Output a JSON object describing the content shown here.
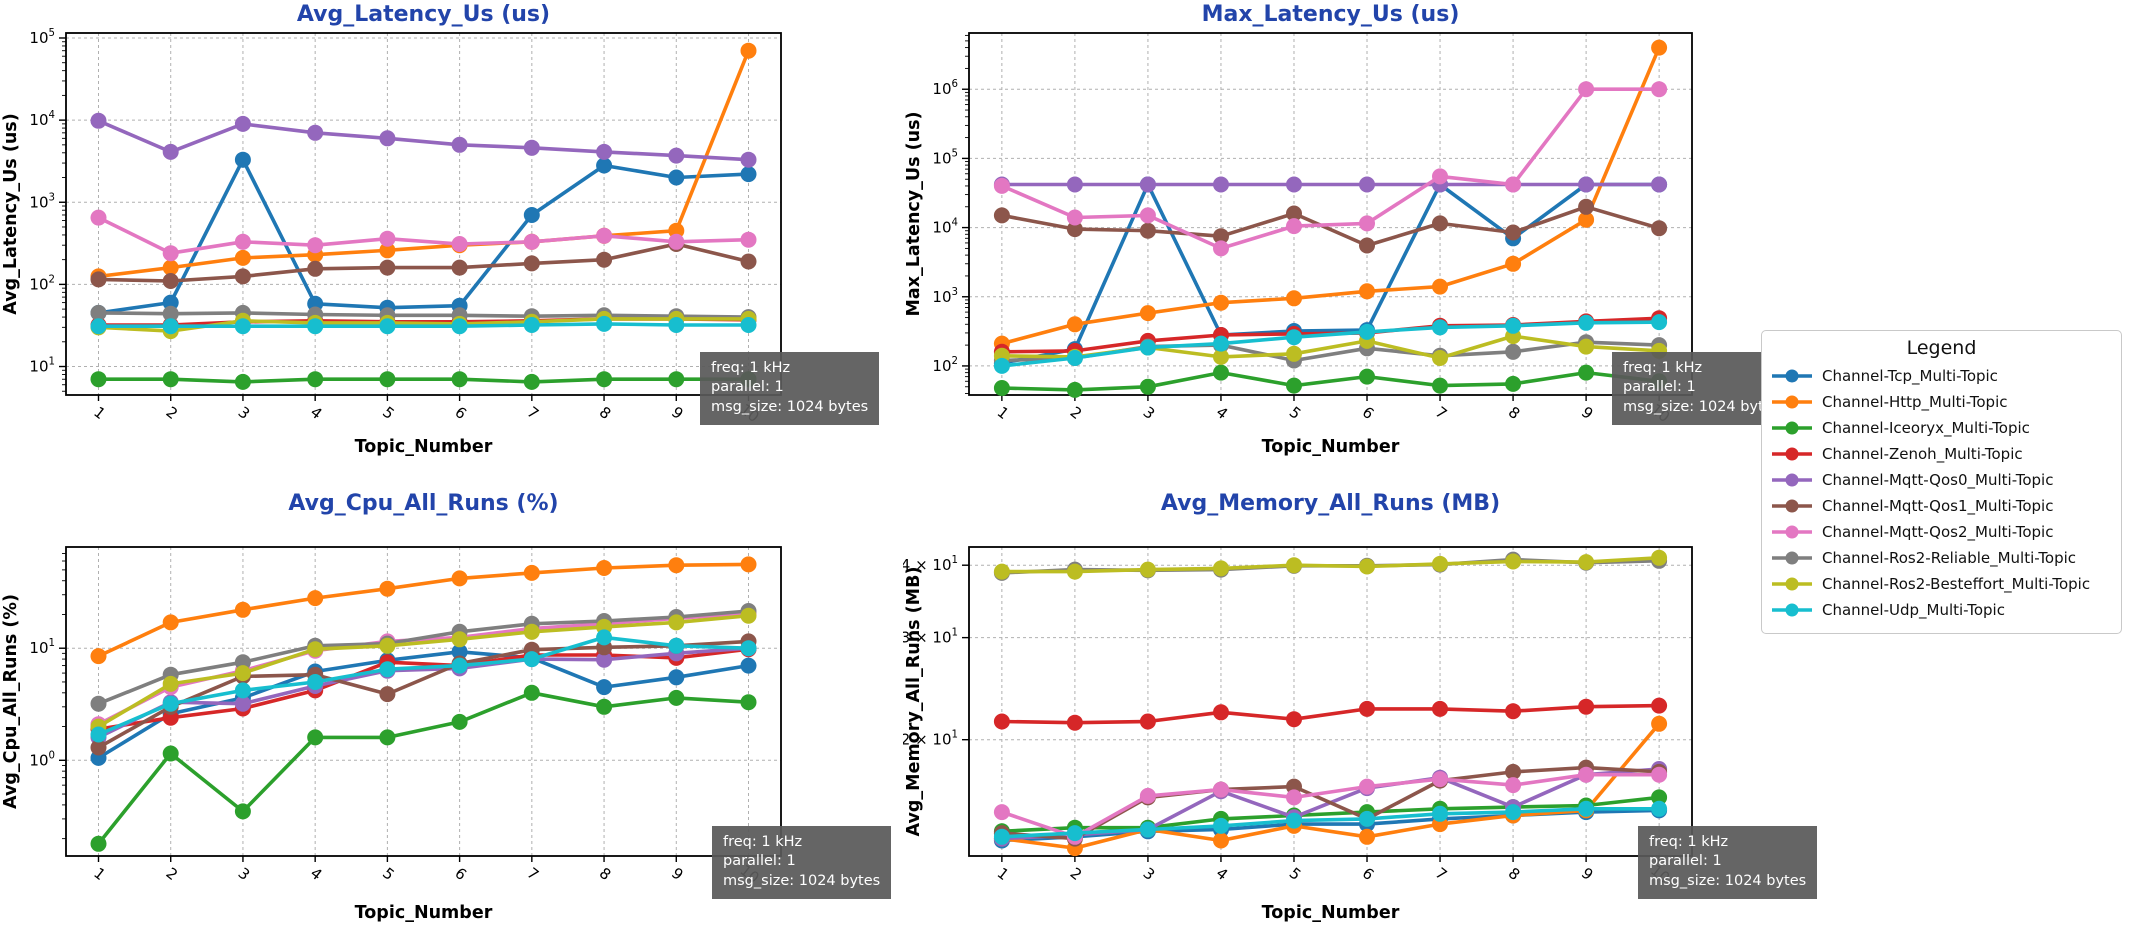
{
  "page": {
    "background": "#ffffff"
  },
  "style": {
    "title_color": "#2244aa",
    "axis_color": "#000000",
    "grid_color": "#b0b0b0",
    "tick_label_color": "#000000"
  },
  "annotation": {
    "lines": [
      "freq: 1 kHz",
      "parallel: 1",
      "msg_size: 1024 bytes"
    ],
    "bg": "#595959",
    "fg": "#ffffff"
  },
  "legend": {
    "title": "Legend",
    "entries": [
      {
        "label": "Channel-Tcp_Multi-Topic",
        "color": "#1f77b4"
      },
      {
        "label": "Channel-Http_Multi-Topic",
        "color": "#ff7f0e"
      },
      {
        "label": "Channel-Iceoryx_Multi-Topic",
        "color": "#2ca02c"
      },
      {
        "label": "Channel-Zenoh_Multi-Topic",
        "color": "#d62728"
      },
      {
        "label": "Channel-Mqtt-Qos0_Multi-Topic",
        "color": "#9467bd"
      },
      {
        "label": "Channel-Mqtt-Qos1_Multi-Topic",
        "color": "#8c564b"
      },
      {
        "label": "Channel-Mqtt-Qos2_Multi-Topic",
        "color": "#e377c2"
      },
      {
        "label": "Channel-Ros2-Reliable_Multi-Topic",
        "color": "#7f7f7f"
      },
      {
        "label": "Channel-Ros2-Besteffort_Multi-Topic",
        "color": "#bcbd22"
      },
      {
        "label": "Channel-Udp_Multi-Topic",
        "color": "#17becf"
      }
    ]
  },
  "chart_data": [
    {
      "type": "line",
      "title": "Avg_Latency_Us  (us)",
      "ylabel": "Avg_Latency_Us (us)",
      "xlabel": "Topic_Number",
      "yscale": "log",
      "grid": true,
      "x": [
        1,
        2,
        3,
        4,
        5,
        6,
        7,
        8,
        9,
        10
      ],
      "ylim": [
        4.5,
        115000
      ],
      "yticks": [
        {
          "value": 10,
          "label": "10^1"
        },
        {
          "value": 100,
          "label": "10^2"
        },
        {
          "value": 1000,
          "label": "10^3"
        },
        {
          "value": 10000,
          "label": "10^4"
        },
        {
          "value": 100000,
          "label": "10^5"
        }
      ],
      "series": [
        {
          "name": "Channel-Tcp_Multi-Topic",
          "values": [
            45,
            60,
            3300,
            58,
            52,
            55,
            700,
            2800,
            2000,
            2200
          ]
        },
        {
          "name": "Channel-Http_Multi-Topic",
          "values": [
            125,
            160,
            210,
            230,
            260,
            300,
            330,
            390,
            450,
            70000
          ]
        },
        {
          "name": "Channel-Iceoryx_Multi-Topic",
          "values": [
            7,
            7,
            6.5,
            7,
            7,
            7,
            6.5,
            7,
            7,
            7
          ]
        },
        {
          "name": "Channel-Zenoh_Multi-Topic",
          "values": [
            32,
            32,
            35,
            36,
            35,
            35,
            36,
            38,
            38,
            37
          ]
        },
        {
          "name": "Channel-Mqtt-Qos0_Multi-Topic",
          "values": [
            9800,
            4100,
            9000,
            7000,
            6000,
            5000,
            4600,
            4100,
            3700,
            3300
          ]
        },
        {
          "name": "Channel-Mqtt-Qos1_Multi-Topic",
          "values": [
            115,
            110,
            125,
            155,
            160,
            160,
            180,
            200,
            310,
            190
          ]
        },
        {
          "name": "Channel-Mqtt-Qos2_Multi-Topic",
          "values": [
            650,
            240,
            330,
            300,
            360,
            310,
            330,
            390,
            330,
            350
          ]
        },
        {
          "name": "Channel-Ros2-Reliable_Multi-Topic",
          "values": [
            45,
            44,
            45,
            43,
            42,
            42,
            41,
            42,
            41,
            40
          ]
        },
        {
          "name": "Channel-Ros2-Besteffort_Multi-Topic",
          "values": [
            30,
            27,
            36,
            34,
            34,
            33,
            35,
            38,
            38,
            38
          ]
        },
        {
          "name": "Channel-Udp_Multi-Topic",
          "values": [
            31,
            31,
            31,
            31,
            31,
            31,
            32,
            33,
            32,
            32
          ]
        }
      ]
    },
    {
      "type": "line",
      "title": "Max_Latency_Us  (us)",
      "ylabel": "Max_Latency_Us (us)",
      "xlabel": "Topic_Number",
      "yscale": "log",
      "grid": true,
      "x": [
        1,
        2,
        3,
        4,
        5,
        6,
        7,
        8,
        9,
        10
      ],
      "ylim": [
        38,
        6500000
      ],
      "yticks": [
        {
          "value": 100,
          "label": "10^2"
        },
        {
          "value": 1000,
          "label": "10^3"
        },
        {
          "value": 10000,
          "label": "10^4"
        },
        {
          "value": 100000,
          "label": "10^5"
        },
        {
          "value": 1000000,
          "label": "10^6"
        }
      ],
      "series": [
        {
          "name": "Channel-Tcp_Multi-Topic",
          "values": [
            110,
            175,
            42000,
            280,
            320,
            330,
            42000,
            7000,
            42000,
            42000
          ]
        },
        {
          "name": "Channel-Http_Multi-Topic",
          "values": [
            210,
            400,
            580,
            820,
            950,
            1200,
            1400,
            3000,
            13000,
            4000000
          ]
        },
        {
          "name": "Channel-Iceoryx_Multi-Topic",
          "values": [
            48,
            45,
            50,
            80,
            52,
            70,
            52,
            55,
            80,
            60
          ]
        },
        {
          "name": "Channel-Zenoh_Multi-Topic",
          "values": [
            160,
            165,
            230,
            280,
            290,
            300,
            380,
            390,
            440,
            490
          ]
        },
        {
          "name": "Channel-Mqtt-Qos0_Multi-Topic",
          "values": [
            42000,
            42000,
            42000,
            42000,
            42000,
            42000,
            42000,
            42000,
            42000,
            42000
          ]
        },
        {
          "name": "Channel-Mqtt-Qos1_Multi-Topic",
          "values": [
            15000,
            9500,
            9000,
            7500,
            16000,
            5500,
            11500,
            8500,
            20000,
            9800
          ]
        },
        {
          "name": "Channel-Mqtt-Qos2_Multi-Topic",
          "values": [
            40000,
            14000,
            15000,
            5000,
            10500,
            11500,
            55000,
            42000,
            1000000,
            1000000
          ]
        },
        {
          "name": "Channel-Ros2-Reliable_Multi-Topic",
          "values": [
            120,
            130,
            190,
            200,
            120,
            180,
            140,
            160,
            220,
            200
          ]
        },
        {
          "name": "Channel-Ros2-Besteffort_Multi-Topic",
          "values": [
            140,
            135,
            185,
            135,
            150,
            230,
            130,
            270,
            190,
            165
          ]
        },
        {
          "name": "Channel-Udp_Multi-Topic",
          "values": [
            100,
            130,
            185,
            210,
            260,
            310,
            360,
            380,
            420,
            430
          ]
        }
      ]
    },
    {
      "type": "line",
      "title": "Avg_Cpu_All_Runs  (%)",
      "ylabel": "Avg_Cpu_All_Runs (%)",
      "xlabel": "Topic_Number",
      "yscale": "log",
      "grid": true,
      "x": [
        1,
        2,
        3,
        4,
        5,
        6,
        7,
        8,
        9,
        10
      ],
      "ylim": [
        0.14,
        80
      ],
      "yticks": [
        {
          "value": 1,
          "label": "10^0"
        },
        {
          "value": 10,
          "label": "10^1"
        }
      ],
      "series": [
        {
          "name": "Channel-Tcp_Multi-Topic",
          "values": [
            1.05,
            2.6,
            3.6,
            6.2,
            7.8,
            9.3,
            8.2,
            4.5,
            5.5,
            7.0
          ]
        },
        {
          "name": "Channel-Http_Multi-Topic",
          "values": [
            8.5,
            17,
            22,
            28,
            34,
            42,
            47,
            52,
            55,
            56
          ]
        },
        {
          "name": "Channel-Iceoryx_Multi-Topic",
          "values": [
            0.18,
            1.15,
            0.35,
            1.6,
            1.6,
            2.2,
            4.0,
            3.0,
            3.6,
            3.3
          ]
        },
        {
          "name": "Channel-Zenoh_Multi-Topic",
          "values": [
            1.9,
            2.4,
            2.9,
            4.2,
            7.5,
            7.0,
            8.7,
            8.7,
            8.2,
            9.8
          ]
        },
        {
          "name": "Channel-Mqtt-Qos0_Multi-Topic",
          "values": [
            1.6,
            3.3,
            3.2,
            4.6,
            6.3,
            6.6,
            8.0,
            7.9,
            9.0,
            10.0
          ]
        },
        {
          "name": "Channel-Mqtt-Qos1_Multi-Topic",
          "values": [
            1.3,
            3.0,
            5.6,
            5.8,
            3.9,
            7.3,
            9.7,
            10.2,
            10.5,
            11.5
          ]
        },
        {
          "name": "Channel-Mqtt-Qos2_Multi-Topic",
          "values": [
            2.1,
            4.5,
            6.3,
            9.5,
            11.5,
            12.5,
            15,
            16.5,
            18.5,
            20.5
          ]
        },
        {
          "name": "Channel-Ros2-Reliable_Multi-Topic",
          "values": [
            3.2,
            5.8,
            7.5,
            10.5,
            11,
            14,
            16.5,
            17.5,
            19,
            21.5
          ]
        },
        {
          "name": "Channel-Ros2-Besteffort_Multi-Topic",
          "values": [
            2.0,
            4.8,
            6.0,
            9.8,
            10.5,
            12.0,
            14,
            15.5,
            17,
            19.5
          ]
        },
        {
          "name": "Channel-Udp_Multi-Topic",
          "values": [
            1.7,
            3.2,
            4.2,
            5.0,
            6.5,
            7.0,
            8.0,
            12.5,
            10.5,
            10.0
          ]
        }
      ]
    },
    {
      "type": "line",
      "title": "Avg_Memory_All_Runs  (MB)",
      "ylabel": "Avg_Memory_All_Runs (MB)",
      "xlabel": "Topic_Number",
      "yscale": "log",
      "grid": true,
      "x": [
        1,
        2,
        3,
        4,
        5,
        6,
        7,
        8,
        9,
        10
      ],
      "ylim": [
        12.6,
        43
      ],
      "yticks": [
        {
          "value": 20,
          "label": "2 × 10^1"
        },
        {
          "value": 30,
          "label": "3 × 10^1"
        },
        {
          "value": 40,
          "label": "4 × 10^1"
        }
      ],
      "series": [
        {
          "name": "Channel-Tcp_Multi-Topic",
          "values": [
            13.4,
            13.6,
            13.9,
            14.0,
            14.3,
            14.3,
            14.6,
            14.8,
            15.0,
            15.1
          ]
        },
        {
          "name": "Channel-Http_Multi-Topic",
          "values": [
            13.5,
            13.0,
            14.0,
            13.4,
            14.2,
            13.6,
            14.3,
            14.8,
            15.1,
            21.3
          ]
        },
        {
          "name": "Channel-Iceoryx_Multi-Topic",
          "values": [
            13.9,
            14.1,
            14.1,
            14.6,
            14.8,
            15.0,
            15.2,
            15.3,
            15.4,
            15.9
          ]
        },
        {
          "name": "Channel-Zenoh_Multi-Topic",
          "values": [
            21.5,
            21.4,
            21.5,
            22.3,
            21.7,
            22.6,
            22.6,
            22.4,
            22.8,
            22.9
          ]
        },
        {
          "name": "Channel-Mqtt-Qos0_Multi-Topic",
          "values": [
            13.5,
            13.7,
            14.0,
            16.3,
            14.7,
            16.5,
            17.2,
            15.3,
            17.4,
            17.8
          ]
        },
        {
          "name": "Channel-Mqtt-Qos1_Multi-Topic",
          "values": [
            13.8,
            13.5,
            15.9,
            16.4,
            16.6,
            14.6,
            17.0,
            17.6,
            17.9,
            17.6
          ]
        },
        {
          "name": "Channel-Mqtt-Qos2_Multi-Topic",
          "values": [
            15.0,
            13.6,
            16.0,
            16.4,
            15.9,
            16.6,
            17.1,
            16.7,
            17.4,
            17.4
          ]
        },
        {
          "name": "Channel-Ros2-Reliable_Multi-Topic",
          "values": [
            38.8,
            39.3,
            39.2,
            39.3,
            39.9,
            39.9,
            40.1,
            40.9,
            40.4,
            40.7
          ]
        },
        {
          "name": "Channel-Ros2-Besteffort_Multi-Topic",
          "values": [
            39.0,
            39.0,
            39.3,
            39.5,
            40.0,
            39.8,
            40.2,
            40.6,
            40.5,
            41.2
          ]
        },
        {
          "name": "Channel-Udp_Multi-Topic",
          "values": [
            13.6,
            13.8,
            14.0,
            14.2,
            14.5,
            14.6,
            14.9,
            15.0,
            15.2,
            15.2
          ]
        }
      ]
    }
  ]
}
